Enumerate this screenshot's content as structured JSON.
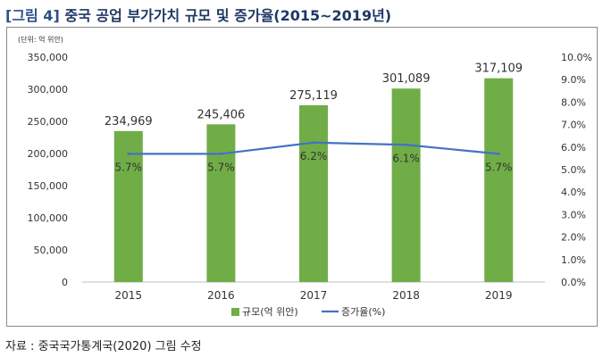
{
  "figure": {
    "tag": "[그림 4]",
    "title": "중국 공업 부가가치 규모 및 증가율(2015~2019년)"
  },
  "source": "자료 : 중국국가통계국(2020) 그림 수정",
  "chart_data": {
    "type": "bar",
    "unit_label": "(단위: 억 위안)",
    "categories": [
      "2015",
      "2016",
      "2017",
      "2018",
      "2019"
    ],
    "series": [
      {
        "name": "규모(억 위안)",
        "type": "bar",
        "axis": "left",
        "color": "#70ad47",
        "values": [
          234969,
          245406,
          275119,
          301089,
          317109
        ],
        "labels": [
          "234,969",
          "245,406",
          "275,119",
          "301,089",
          "317,109"
        ]
      },
      {
        "name": "증가율(%)",
        "type": "line",
        "axis": "right",
        "color": "#4472c4",
        "values": [
          5.7,
          5.7,
          6.2,
          6.1,
          5.7
        ],
        "labels": [
          "5.7%",
          "5.7%",
          "6.2%",
          "6.1%",
          "5.7%"
        ]
      }
    ],
    "left_axis": {
      "ylim": [
        0,
        350000
      ],
      "ticks": [
        "0",
        "50,000",
        "100,000",
        "150,000",
        "200,000",
        "250,000",
        "300,000",
        "350,000"
      ]
    },
    "right_axis": {
      "ylim": [
        0,
        10
      ],
      "ticks": [
        "0.0%",
        "1.0%",
        "2.0%",
        "3.0%",
        "4.0%",
        "5.0%",
        "6.0%",
        "7.0%",
        "8.0%",
        "9.0%",
        "10.0%"
      ]
    },
    "grid": false,
    "legend_position": "bottom"
  }
}
